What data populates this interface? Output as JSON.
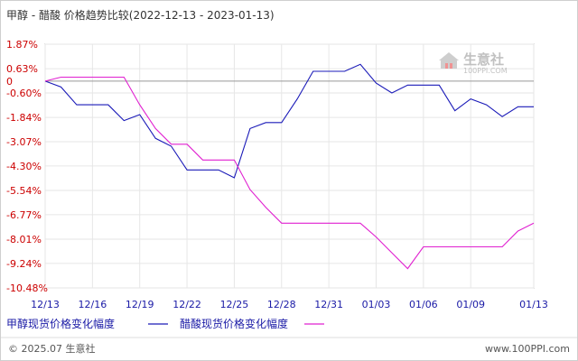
{
  "chart_data": {
    "type": "line",
    "title": "甲醇 - 醋酸 价格趋势比较(2022-12-13 - 2023-01-13)",
    "y_ticks": [
      "1.87%",
      "0.63%",
      "0",
      "-0.60%",
      "-1.84%",
      "-3.07%",
      "-4.30%",
      "-5.54%",
      "-6.77%",
      "-8.01%",
      "-9.24%",
      "-10.48%"
    ],
    "x_ticks": [
      "12/13",
      "12/16",
      "12/19",
      "12/22",
      "12/25",
      "12/28",
      "12/31",
      "01/03",
      "01/06",
      "01/09",
      "01/13"
    ],
    "ylim": [
      -10.48,
      1.87
    ],
    "x": [
      "12/13",
      "12/14",
      "12/15",
      "12/16",
      "12/17",
      "12/18",
      "12/19",
      "12/20",
      "12/21",
      "12/22",
      "12/23",
      "12/24",
      "12/25",
      "12/26",
      "12/27",
      "12/28",
      "12/29",
      "12/30",
      "12/31",
      "01/01",
      "01/02",
      "01/03",
      "01/04",
      "01/05",
      "01/06",
      "01/07",
      "01/08",
      "01/09",
      "01/10",
      "01/11",
      "01/12",
      "01/13"
    ],
    "series": [
      {
        "name": "甲醇现货价格变化幅度",
        "color": "#1a1ab8",
        "values": [
          0,
          -0.3,
          -1.2,
          -1.2,
          -1.2,
          -2.0,
          -1.7,
          -2.9,
          -3.3,
          -4.5,
          -4.5,
          -4.5,
          -4.9,
          -2.4,
          -2.1,
          -2.1,
          -0.9,
          0.5,
          0.5,
          0.5,
          0.85,
          -0.1,
          -0.6,
          -0.2,
          -0.2,
          -0.2,
          -1.5,
          -0.9,
          -1.2,
          -1.8,
          -1.3,
          -1.3
        ]
      },
      {
        "name": "醋酸现货价格变化幅度",
        "color": "#e020d0",
        "values": [
          0,
          0.2,
          0.2,
          0.2,
          0.2,
          0.2,
          -1.2,
          -2.4,
          -3.2,
          -3.2,
          -4.0,
          -4.0,
          -4.0,
          -5.5,
          -6.4,
          -7.2,
          -7.2,
          -7.2,
          -7.2,
          -7.2,
          -7.2,
          -7.9,
          -8.7,
          -9.5,
          -8.4,
          -8.4,
          -8.4,
          -8.4,
          -8.4,
          -8.4,
          -7.6,
          -7.2
        ]
      }
    ],
    "grid": true,
    "legend_position": "bottom-left"
  },
  "legend": {
    "item1": "甲醇现货价格变化幅度",
    "item2": "醋酸现货价格变化幅度"
  },
  "footer": {
    "copyright": "© 2025.07 生意社",
    "url": "www.100PPI.com"
  },
  "watermark": {
    "brand": "生意社",
    "sub": "100PPI.COM"
  }
}
